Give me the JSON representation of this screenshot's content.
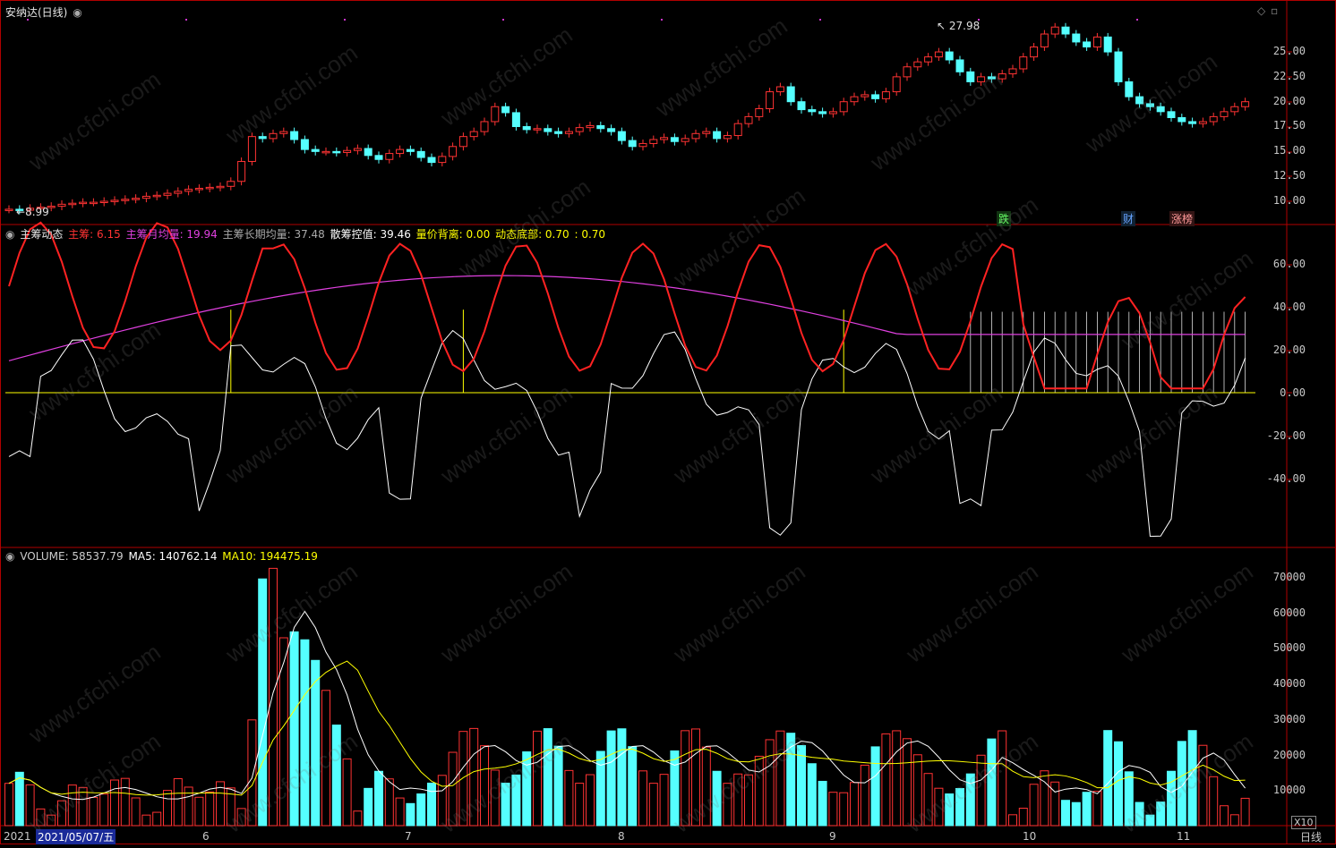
{
  "title": "安纳达(日线)",
  "price_axis": [
    "25.00",
    "22.50",
    "20.00",
    "17.50",
    "15.00",
    "12.50",
    "10.00"
  ],
  "price_marks": {
    "high": "27.98",
    "low": "8.99"
  },
  "event_tags": [
    {
      "label": "跌",
      "color": "#66ff66"
    },
    {
      "label": "财",
      "color": "#66a3ff"
    },
    {
      "label": "涨榜",
      "color": "#ff9999"
    }
  ],
  "indicator": {
    "name": "主筹动态",
    "items": [
      {
        "label": "主筹:",
        "value": "6.15",
        "color": "#ff3333"
      },
      {
        "label": "主筹月均量:",
        "value": "19.94",
        "color": "#e040e0"
      },
      {
        "label": "主筹长期均量:",
        "value": "37.48",
        "color": "#aaaaaa"
      },
      {
        "label": "散筹控值:",
        "value": "39.46",
        "color": "#ffffff"
      },
      {
        "label": "量价背离:",
        "value": "0.00",
        "color": "#ffff00"
      },
      {
        "label": "动态底部:",
        "value": "0.70",
        "color": "#ffff00"
      },
      {
        "label": ":",
        "value": "0.70",
        "color": "#ffff00"
      }
    ],
    "axis": [
      "60.00",
      "40.00",
      "20.00",
      "0.00",
      "-20.00",
      "-40.00"
    ]
  },
  "volume": {
    "items": [
      {
        "label": "VOLUME:",
        "value": "58537.79",
        "color": "#cccccc"
      },
      {
        "label": "MA5:",
        "value": "140762.14",
        "color": "#ffffff"
      },
      {
        "label": "MA10:",
        "value": "194475.19",
        "color": "#ffff00"
      }
    ],
    "axis": [
      "70000",
      "60000",
      "50000",
      "40000",
      "30000",
      "20000",
      "10000"
    ],
    "unit": "X10"
  },
  "bottom": {
    "year": "2021",
    "cursor_date": "2021/05/07/五",
    "months": [
      "6",
      "7",
      "8",
      "9",
      "10",
      "11"
    ],
    "period": "日线"
  },
  "watermark": "www.cfchi.com",
  "colors": {
    "up": "#ff3333",
    "down": "#55ffff",
    "border": "#b00000"
  }
}
